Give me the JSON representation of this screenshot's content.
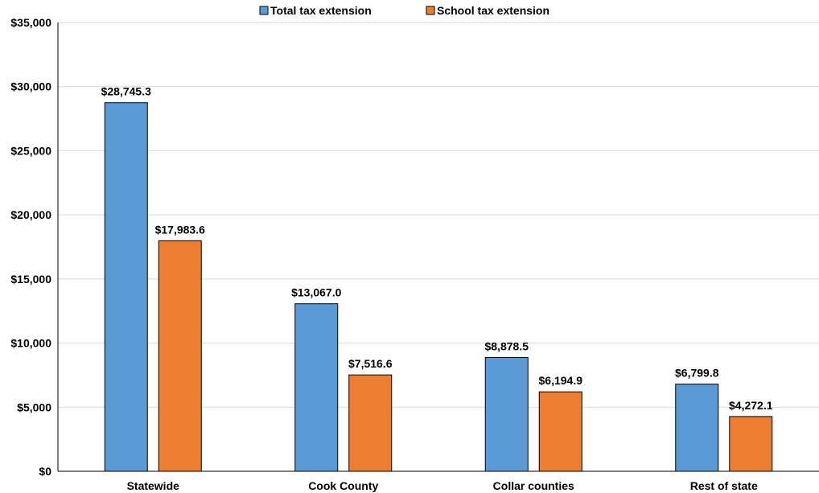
{
  "chart_data": {
    "type": "bar",
    "categories": [
      "Statewide",
      "Cook County",
      "Collar counties",
      "Rest of state"
    ],
    "series": [
      {
        "name": "Total tax extension",
        "color": "#5b9bd5",
        "values": [
          28745.3,
          13067.0,
          8878.5,
          6799.8
        ],
        "labels": [
          "$28,745.3",
          "$13,067.0",
          "$8,878.5",
          "$6,799.8"
        ]
      },
      {
        "name": "School tax extension",
        "color": "#ed7d31",
        "values": [
          17983.6,
          7516.6,
          6194.9,
          4272.1
        ],
        "labels": [
          "$17,983.6",
          "$7,516.6",
          "$6,194.9",
          "$4,272.1"
        ]
      }
    ],
    "ylim": [
      0,
      35000
    ],
    "yticks": [
      0,
      5000,
      10000,
      15000,
      20000,
      25000,
      30000,
      35000
    ],
    "ytick_labels": [
      "$0",
      "$5,000",
      "$10,000",
      "$15,000",
      "$20,000",
      "$25,000",
      "$30,000",
      "$35,000"
    ],
    "grid": true,
    "legend_position": "top-center"
  }
}
